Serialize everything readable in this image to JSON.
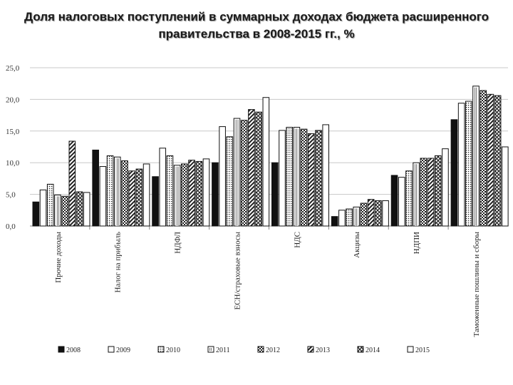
{
  "chart_data": {
    "type": "bar",
    "title": "Доля налоговых поступлений в суммарных доходах бюджета расширенного правительства в 2008-2015 гг., %",
    "categories": [
      "Прочие доходы",
      "Налог на прибыль",
      "НДФЛ",
      "ЕСН/страховые взносы",
      "НДС",
      "Акцизы",
      "НДПИ",
      "Таможенные пошлины и сборы"
    ],
    "series": [
      {
        "name": "2008",
        "values": [
          3.8,
          12.0,
          7.8,
          10.0,
          10.0,
          1.5,
          8.0,
          16.8
        ]
      },
      {
        "name": "2009",
        "values": [
          5.7,
          9.4,
          12.3,
          15.7,
          15.1,
          2.5,
          7.7,
          19.4
        ]
      },
      {
        "name": "2010",
        "values": [
          6.6,
          11.1,
          11.1,
          14.1,
          15.6,
          2.7,
          8.7,
          19.7
        ]
      },
      {
        "name": "2011",
        "values": [
          4.9,
          10.9,
          9.6,
          17.0,
          15.6,
          3.0,
          10.0,
          22.1
        ]
      },
      {
        "name": "2012",
        "values": [
          4.7,
          10.3,
          9.8,
          16.7,
          15.3,
          3.6,
          10.7,
          21.4
        ]
      },
      {
        "name": "2013",
        "values": [
          13.4,
          8.7,
          10.4,
          18.4,
          14.6,
          4.2,
          10.7,
          20.8
        ]
      },
      {
        "name": "2014",
        "values": [
          5.4,
          9.0,
          10.2,
          18.0,
          15.1,
          4.0,
          11.1,
          20.6
        ]
      },
      {
        "name": "2015",
        "values": [
          5.3,
          9.8,
          10.6,
          20.3,
          16.0,
          4.0,
          12.2,
          12.5
        ]
      }
    ],
    "yticks": [
      "0,0",
      "5,0",
      "10,0",
      "15,0",
      "20,0",
      "25,0"
    ],
    "ylim": [
      0,
      25
    ],
    "grid": true,
    "legend": "bottom",
    "category_colors": [
      "#222222",
      "#222222",
      "#6a4a9a",
      "#222222",
      "#222222",
      "#222222",
      "#6a4a9a",
      "#222222"
    ]
  }
}
